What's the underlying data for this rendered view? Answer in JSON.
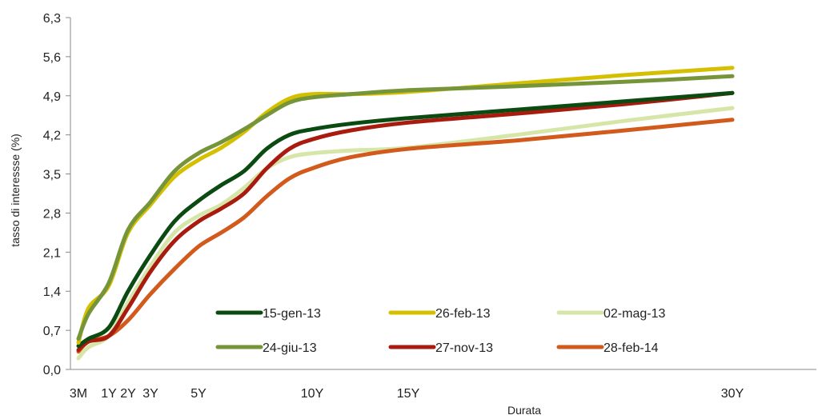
{
  "chart_data": {
    "type": "line",
    "xlabel": "Durata",
    "ylabel": "tasso di interessse (%)",
    "ylim": [
      0,
      6.3
    ],
    "yticks": [
      "0,0",
      "0,7",
      "1,4",
      "2,1",
      "2,8",
      "3,5",
      "4,2",
      "4,9",
      "5,6",
      "6,3"
    ],
    "yticks_values": [
      0,
      0.7,
      1.4,
      2.1,
      2.8,
      3.5,
      4.2,
      4.9,
      5.6,
      6.3
    ],
    "x_label_ticks": [
      {
        "label": "3M",
        "x": 0.25
      },
      {
        "label": "1Y",
        "x": 1
      },
      {
        "label": "2Y",
        "x": 2
      },
      {
        "label": "3Y",
        "x": 3
      },
      {
        "label": "5Y",
        "x": 5
      },
      {
        "label": "10Y",
        "x": 10
      },
      {
        "label": "15Y",
        "x": 15
      },
      {
        "label": "30Y",
        "x": 30
      }
    ],
    "xlim": [
      0,
      33
    ],
    "grid": false,
    "legend_position": "bottom-center",
    "series": [
      {
        "name": "15-gen-13",
        "color": "#0b4a10",
        "points": [
          [
            0.25,
            0.42
          ],
          [
            0.5,
            0.55
          ],
          [
            1,
            0.75
          ],
          [
            2,
            1.4
          ],
          [
            3,
            2.05
          ],
          [
            4,
            2.65
          ],
          [
            5,
            3.02
          ],
          [
            6,
            3.3
          ],
          [
            7,
            3.55
          ],
          [
            8,
            3.95
          ],
          [
            9,
            4.2
          ],
          [
            10,
            4.3
          ],
          [
            12,
            4.4
          ],
          [
            15,
            4.5
          ],
          [
            20,
            4.65
          ],
          [
            25,
            4.8
          ],
          [
            30,
            4.95
          ]
        ]
      },
      {
        "name": "26-feb-13",
        "color": "#d4c000",
        "points": [
          [
            0.25,
            0.48
          ],
          [
            0.5,
            1.1
          ],
          [
            1,
            1.5
          ],
          [
            2,
            2.45
          ],
          [
            3,
            2.95
          ],
          [
            4,
            3.45
          ],
          [
            5,
            3.75
          ],
          [
            6,
            3.97
          ],
          [
            7,
            4.25
          ],
          [
            8,
            4.6
          ],
          [
            9,
            4.85
          ],
          [
            10,
            4.93
          ],
          [
            12,
            4.93
          ],
          [
            15,
            4.97
          ],
          [
            20,
            5.12
          ],
          [
            25,
            5.27
          ],
          [
            30,
            5.4
          ]
        ]
      },
      {
        "name": "02-mag-13",
        "color": "#d6e6a8",
        "points": [
          [
            0.25,
            0.2
          ],
          [
            0.5,
            0.4
          ],
          [
            1,
            0.6
          ],
          [
            2,
            1.2
          ],
          [
            3,
            1.85
          ],
          [
            4,
            2.45
          ],
          [
            5,
            2.75
          ],
          [
            6,
            2.95
          ],
          [
            7,
            3.25
          ],
          [
            8,
            3.6
          ],
          [
            9,
            3.8
          ],
          [
            10,
            3.87
          ],
          [
            12,
            3.92
          ],
          [
            15,
            3.97
          ],
          [
            20,
            4.2
          ],
          [
            25,
            4.45
          ],
          [
            30,
            4.68
          ]
        ]
      },
      {
        "name": "24-giu-13",
        "color": "#76953a",
        "points": [
          [
            0.25,
            0.55
          ],
          [
            0.5,
            1.0
          ],
          [
            1,
            1.55
          ],
          [
            2,
            2.5
          ],
          [
            3,
            3.0
          ],
          [
            4,
            3.55
          ],
          [
            5,
            3.87
          ],
          [
            6,
            4.07
          ],
          [
            7,
            4.3
          ],
          [
            8,
            4.55
          ],
          [
            9,
            4.78
          ],
          [
            10,
            4.87
          ],
          [
            12,
            4.93
          ],
          [
            15,
            5.0
          ],
          [
            20,
            5.07
          ],
          [
            25,
            5.15
          ],
          [
            30,
            5.25
          ]
        ]
      },
      {
        "name": "27-nov-13",
        "color": "#a81b0e",
        "points": [
          [
            0.25,
            0.35
          ],
          [
            0.5,
            0.5
          ],
          [
            1,
            0.6
          ],
          [
            2,
            1.1
          ],
          [
            3,
            1.75
          ],
          [
            4,
            2.3
          ],
          [
            5,
            2.65
          ],
          [
            6,
            2.88
          ],
          [
            7,
            3.15
          ],
          [
            8,
            3.6
          ],
          [
            9,
            3.95
          ],
          [
            10,
            4.12
          ],
          [
            12,
            4.28
          ],
          [
            15,
            4.42
          ],
          [
            20,
            4.58
          ],
          [
            25,
            4.75
          ],
          [
            30,
            4.95
          ]
        ]
      },
      {
        "name": "28-feb-14",
        "color": "#d25a1c",
        "points": [
          [
            0.25,
            0.32
          ],
          [
            0.5,
            0.5
          ],
          [
            1,
            0.6
          ],
          [
            2,
            0.88
          ],
          [
            3,
            1.35
          ],
          [
            4,
            1.8
          ],
          [
            5,
            2.2
          ],
          [
            6,
            2.45
          ],
          [
            7,
            2.72
          ],
          [
            8,
            3.1
          ],
          [
            9,
            3.42
          ],
          [
            10,
            3.6
          ],
          [
            12,
            3.8
          ],
          [
            15,
            3.95
          ],
          [
            20,
            4.1
          ],
          [
            25,
            4.28
          ],
          [
            30,
            4.47
          ]
        ]
      }
    ]
  }
}
